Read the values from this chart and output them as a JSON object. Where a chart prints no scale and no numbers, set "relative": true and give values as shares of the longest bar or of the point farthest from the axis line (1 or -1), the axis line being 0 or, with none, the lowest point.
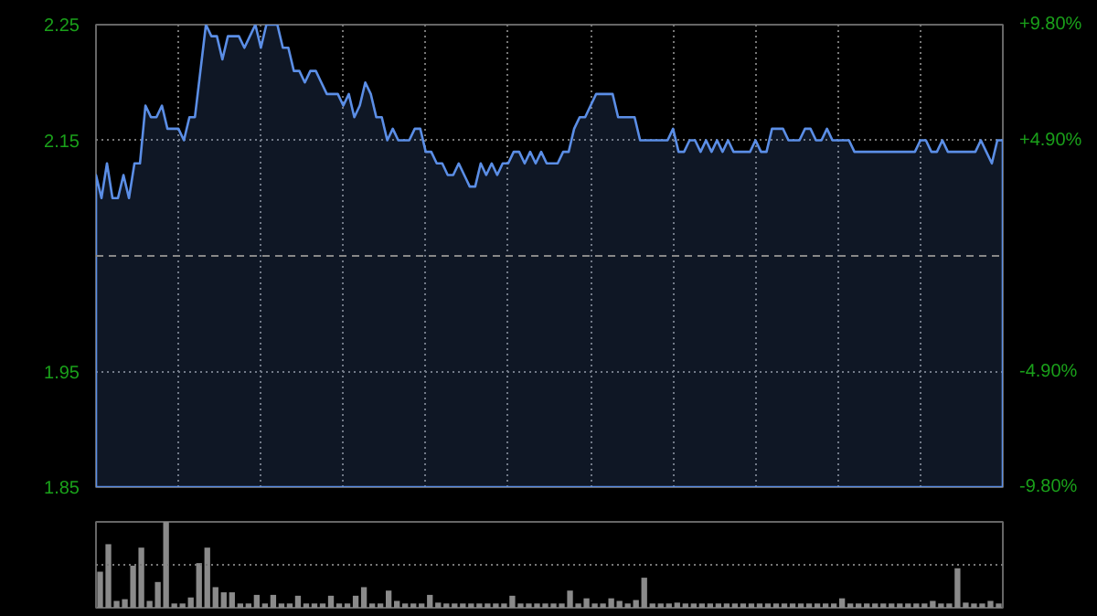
{
  "chart_data": [
    {
      "type": "area",
      "color": "#5b8ee6",
      "categories": [
        null,
        null,
        null,
        null,
        null,
        null,
        null,
        null,
        null,
        null,
        null,
        null,
        null,
        null,
        null,
        null,
        null,
        null,
        null,
        null,
        null,
        null,
        null,
        null,
        null,
        null,
        null,
        null,
        null,
        null,
        null,
        null,
        null,
        null,
        null,
        null,
        null,
        null,
        null,
        null,
        null,
        null,
        null,
        null,
        null,
        null,
        null,
        null,
        null,
        null,
        null,
        null,
        null,
        null,
        null,
        null,
        null,
        null,
        null,
        null,
        null,
        null,
        null,
        null,
        null,
        null,
        null,
        null,
        null,
        null,
        null,
        null,
        null,
        null,
        null,
        null,
        null,
        null,
        null,
        null,
        null,
        null,
        null,
        null,
        null,
        null,
        null,
        null,
        null,
        null,
        null,
        null,
        null,
        null,
        null,
        null,
        null,
        null,
        null,
        null,
        null,
        null,
        null,
        null,
        null,
        null,
        null,
        null,
        null,
        null,
        null,
        null,
        null,
        null,
        null,
        null,
        null,
        null,
        null,
        null,
        null,
        null,
        null,
        null,
        null,
        null,
        null,
        null,
        null,
        null,
        null,
        null,
        null,
        null,
        null,
        null,
        null,
        null,
        null,
        null,
        null,
        null,
        null,
        null,
        null,
        null,
        null,
        null,
        null,
        null,
        null,
        null,
        null,
        null,
        null,
        null,
        null,
        null,
        null,
        null,
        null,
        null,
        null,
        null,
        null,
        null
      ],
      "values": [
        2.12,
        2.1,
        2.13,
        2.1,
        2.1,
        2.12,
        2.1,
        2.13,
        2.13,
        2.18,
        2.17,
        2.17,
        2.18,
        2.16,
        2.16,
        2.16,
        2.15,
        2.17,
        2.17,
        2.21,
        2.25,
        2.24,
        2.24,
        2.22,
        2.24,
        2.24,
        2.24,
        2.23,
        2.24,
        2.25,
        2.23,
        2.25,
        2.25,
        2.25,
        2.23,
        2.23,
        2.21,
        2.21,
        2.2,
        2.21,
        2.21,
        2.2,
        2.19,
        2.19,
        2.19,
        2.18,
        2.19,
        2.17,
        2.18,
        2.2,
        2.19,
        2.17,
        2.17,
        2.15,
        2.16,
        2.15,
        2.15,
        2.15,
        2.16,
        2.16,
        2.14,
        2.14,
        2.13,
        2.13,
        2.12,
        2.12,
        2.13,
        2.12,
        2.11,
        2.11,
        2.13,
        2.12,
        2.13,
        2.12,
        2.13,
        2.13,
        2.14,
        2.14,
        2.13,
        2.14,
        2.13,
        2.14,
        2.13,
        2.13,
        2.13,
        2.14,
        2.14,
        2.16,
        2.17,
        2.17,
        2.18,
        2.19,
        2.19,
        2.19,
        2.19,
        2.17,
        2.17,
        2.17,
        2.17,
        2.15,
        2.15,
        2.15,
        2.15,
        2.15,
        2.15,
        2.16,
        2.14,
        2.14,
        2.15,
        2.15,
        2.14,
        2.15,
        2.14,
        2.15,
        2.14,
        2.15,
        2.14,
        2.14,
        2.14,
        2.14,
        2.15,
        2.14,
        2.14,
        2.16,
        2.16,
        2.16,
        2.15,
        2.15,
        2.15,
        2.16,
        2.16,
        2.15,
        2.15,
        2.16,
        2.15,
        2.15,
        2.15,
        2.15,
        2.14,
        2.14,
        2.14,
        2.14,
        2.14,
        2.14,
        2.14,
        2.14,
        2.14,
        2.14,
        2.14,
        2.14,
        2.15,
        2.15,
        2.14,
        2.14,
        2.15,
        2.14,
        2.14,
        2.14,
        2.14,
        2.14,
        2.14,
        2.15,
        2.14,
        2.13,
        2.15,
        2.15
      ],
      "ylim": [
        1.85,
        2.25
      ],
      "yticks": [
        1.85,
        1.95,
        2.15,
        2.25
      ],
      "y2lim": [
        -9.8,
        9.8
      ],
      "y2ticks": [
        {
          "value": -9.8,
          "label": "-9.80%"
        },
        {
          "value": -4.9,
          "label": "-4.90%"
        },
        {
          "value": 4.9,
          "label": "+4.90%"
        },
        {
          "value": 9.8,
          "label": "+9.80%"
        }
      ],
      "ref_lines": [
        {
          "axis": "y",
          "value": 2.05,
          "line_style": "dashed"
        }
      ],
      "grid": true,
      "tick_labels": "y"
    },
    {
      "type": "bar",
      "relative": true,
      "color": "#8a8a8a",
      "tick_labels": false,
      "ref_lines": [
        {
          "axis": "y",
          "value": 0.5,
          "line_style": "dotted"
        }
      ],
      "categories": [
        null,
        null,
        null,
        null,
        null,
        null,
        null,
        null,
        null,
        null,
        null,
        null,
        null,
        null,
        null,
        null,
        null,
        null,
        null,
        null,
        null,
        null,
        null,
        null,
        null,
        null,
        null,
        null,
        null,
        null,
        null,
        null,
        null,
        null,
        null,
        null,
        null,
        null,
        null,
        null,
        null,
        null,
        null,
        null,
        null,
        null,
        null,
        null,
        null,
        null,
        null,
        null,
        null,
        null,
        null,
        null,
        null,
        null,
        null,
        null,
        null,
        null,
        null,
        null,
        null,
        null,
        null,
        null,
        null,
        null,
        null,
        null,
        null,
        null,
        null,
        null,
        null,
        null,
        null,
        null,
        null,
        null,
        null,
        null,
        null,
        null,
        null,
        null,
        null,
        null,
        null,
        null,
        null,
        null,
        null,
        null,
        null,
        null,
        null,
        null,
        null,
        null,
        null,
        null,
        null,
        null,
        null,
        null,
        null,
        null
      ],
      "values": [
        0.42,
        0.74,
        0.08,
        0.1,
        0.49,
        0.7,
        0.08,
        0.3,
        1.0,
        0.05,
        0.05,
        0.12,
        0.52,
        0.7,
        0.24,
        0.18,
        0.18,
        0.05,
        0.05,
        0.15,
        0.05,
        0.15,
        0.05,
        0.05,
        0.14,
        0.05,
        0.05,
        0.05,
        0.14,
        0.05,
        0.05,
        0.14,
        0.24,
        0.05,
        0.05,
        0.2,
        0.08,
        0.05,
        0.05,
        0.05,
        0.15,
        0.06,
        0.05,
        0.05,
        0.05,
        0.05,
        0.05,
        0.05,
        0.05,
        0.05,
        0.14,
        0.05,
        0.05,
        0.05,
        0.05,
        0.05,
        0.05,
        0.2,
        0.05,
        0.11,
        0.05,
        0.05,
        0.11,
        0.08,
        0.05,
        0.09,
        0.35,
        0.05,
        0.05,
        0.05,
        0.06,
        0.05,
        0.05,
        0.05,
        0.05,
        0.05,
        0.05,
        0.05,
        0.05,
        0.05,
        0.05,
        0.05,
        0.05,
        0.05,
        0.05,
        0.05,
        0.05,
        0.05,
        0.05,
        0.05,
        0.11,
        0.05,
        0.05,
        0.05,
        0.05,
        0.05,
        0.05,
        0.05,
        0.05,
        0.05,
        0.05,
        0.08,
        0.05,
        0.05,
        0.46,
        0.06,
        0.05,
        0.05,
        0.08,
        0.05
      ]
    }
  ]
}
